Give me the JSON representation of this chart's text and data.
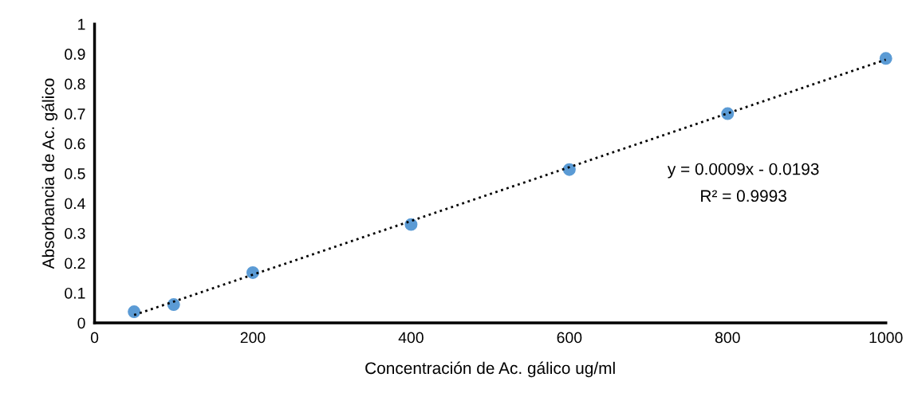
{
  "chart_data": {
    "type": "scatter",
    "xlabel": "Concentración de Ac. gálico ug/ml",
    "ylabel": "Absorbancia de Ac. gálico",
    "xlim": [
      0,
      1000
    ],
    "xticks": [
      0,
      200,
      400,
      600,
      800,
      1000
    ],
    "ylim": [
      0,
      1
    ],
    "yticks": [
      0,
      0.1,
      0.2,
      0.3,
      0.4,
      0.5,
      0.6,
      0.7,
      0.8,
      0.9,
      1
    ],
    "grid": false,
    "legend": false,
    "series": [
      {
        "marker": "circle",
        "color": "#5b9bd5",
        "x": [
          50,
          100,
          200,
          400,
          600,
          800,
          1000
        ],
        "values": [
          0.037,
          0.061,
          0.168,
          0.329,
          0.513,
          0.7,
          0.885
        ]
      },
      {
        "type": "line",
        "marker": "none",
        "color": "#000000",
        "line_style": "dotted",
        "x": [
          50,
          1000
        ],
        "values": [
          0.026,
          0.881
        ]
      }
    ],
    "annotations": [
      "y = 0.0009x - 0.0193",
      "R² = 0.9993"
    ]
  }
}
